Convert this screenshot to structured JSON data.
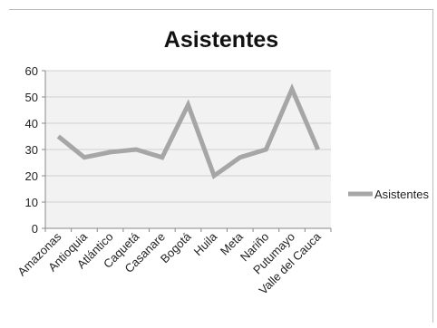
{
  "chart_data": {
    "type": "line",
    "title": "Asistentes",
    "categories": [
      "Amazonas",
      "Antioquia",
      "Atlántico",
      "Caquetá",
      "Casanare",
      "Bogotá",
      "Huila",
      "Meta",
      "Nariño",
      "Putumayo",
      "Valle del Cauca"
    ],
    "series": [
      {
        "name": "Asistentes",
        "values": [
          35,
          27,
          29,
          30,
          27,
          47,
          20,
          27,
          30,
          53,
          30
        ]
      }
    ],
    "ylim": [
      0,
      60
    ],
    "yticks": [
      0,
      10,
      20,
      30,
      40,
      50,
      60
    ],
    "xlabel": "",
    "ylabel": "",
    "grid": true,
    "legend_position": "right",
    "colors": {
      "line": "#a6a6a6",
      "plot_bg": "#f2f2f2",
      "grid": "#d0d0d0",
      "axis": "#888888"
    }
  }
}
